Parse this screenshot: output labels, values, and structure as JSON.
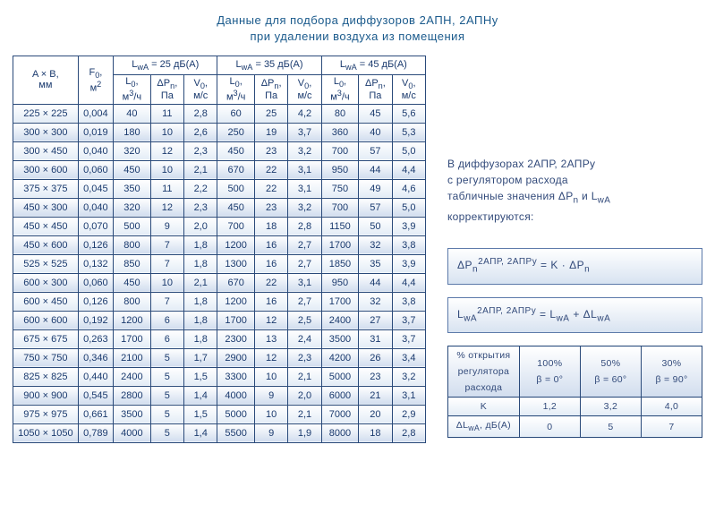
{
  "title_line1": "Данные для подбора диффузоров 2АПН, 2АПНу",
  "title_line2": "при удалении воздуха из помещения",
  "main_table": {
    "header": {
      "ab": "A × B,\nмм",
      "f0_html": "F<sub>0</sub>,<br>м<sup>2</sup>",
      "group25_html": "L<sub>wA</sub> = 25 дБ(A)",
      "group35_html": "L<sub>wA</sub> = 35 дБ(A)",
      "group45_html": "L<sub>wA</sub> = 45 дБ(A)",
      "l0_html": "L<sub>0</sub>,<br>м<sup>3</sup>/ч",
      "dp_html": "ΔP<sub>n</sub>,<br>Па",
      "v0_html": "V<sub>0</sub>,<br>м/с"
    },
    "rows": [
      {
        "ab": "225 × 225",
        "f0": "0,004",
        "g25": [
          "40",
          "11",
          "2,8"
        ],
        "g35": [
          "60",
          "25",
          "4,2"
        ],
        "g45": [
          "80",
          "45",
          "5,6"
        ]
      },
      {
        "ab": "300 × 300",
        "f0": "0,019",
        "g25": [
          "180",
          "10",
          "2,6"
        ],
        "g35": [
          "250",
          "19",
          "3,7"
        ],
        "g45": [
          "360",
          "40",
          "5,3"
        ]
      },
      {
        "ab": "300 × 450",
        "f0": "0,040",
        "g25": [
          "320",
          "12",
          "2,3"
        ],
        "g35": [
          "450",
          "23",
          "3,2"
        ],
        "g45": [
          "700",
          "57",
          "5,0"
        ]
      },
      {
        "ab": "300 × 600",
        "f0": "0,060",
        "g25": [
          "450",
          "10",
          "2,1"
        ],
        "g35": [
          "670",
          "22",
          "3,1"
        ],
        "g45": [
          "950",
          "44",
          "4,4"
        ]
      },
      {
        "ab": "375 × 375",
        "f0": "0,045",
        "g25": [
          "350",
          "11",
          "2,2"
        ],
        "g35": [
          "500",
          "22",
          "3,1"
        ],
        "g45": [
          "750",
          "49",
          "4,6"
        ]
      },
      {
        "ab": "450 × 300",
        "f0": "0,040",
        "g25": [
          "320",
          "12",
          "2,3"
        ],
        "g35": [
          "450",
          "23",
          "3,2"
        ],
        "g45": [
          "700",
          "57",
          "5,0"
        ]
      },
      {
        "ab": "450 × 450",
        "f0": "0,070",
        "g25": [
          "500",
          "9",
          "2,0"
        ],
        "g35": [
          "700",
          "18",
          "2,8"
        ],
        "g45": [
          "1150",
          "50",
          "3,9"
        ]
      },
      {
        "ab": "450 × 600",
        "f0": "0,126",
        "g25": [
          "800",
          "7",
          "1,8"
        ],
        "g35": [
          "1200",
          "16",
          "2,7"
        ],
        "g45": [
          "1700",
          "32",
          "3,8"
        ]
      },
      {
        "ab": "525 × 525",
        "f0": "0,132",
        "g25": [
          "850",
          "7",
          "1,8"
        ],
        "g35": [
          "1300",
          "16",
          "2,7"
        ],
        "g45": [
          "1850",
          "35",
          "3,9"
        ]
      },
      {
        "ab": "600 × 300",
        "f0": "0,060",
        "g25": [
          "450",
          "10",
          "2,1"
        ],
        "g35": [
          "670",
          "22",
          "3,1"
        ],
        "g45": [
          "950",
          "44",
          "4,4"
        ]
      },
      {
        "ab": "600 × 450",
        "f0": "0,126",
        "g25": [
          "800",
          "7",
          "1,8"
        ],
        "g35": [
          "1200",
          "16",
          "2,7"
        ],
        "g45": [
          "1700",
          "32",
          "3,8"
        ]
      },
      {
        "ab": "600 × 600",
        "f0": "0,192",
        "g25": [
          "1200",
          "6",
          "1,8"
        ],
        "g35": [
          "1700",
          "12",
          "2,5"
        ],
        "g45": [
          "2400",
          "27",
          "3,7"
        ]
      },
      {
        "ab": "675 × 675",
        "f0": "0,263",
        "g25": [
          "1700",
          "6",
          "1,8"
        ],
        "g35": [
          "2300",
          "13",
          "2,4"
        ],
        "g45": [
          "3500",
          "31",
          "3,7"
        ]
      },
      {
        "ab": "750 × 750",
        "f0": "0,346",
        "g25": [
          "2100",
          "5",
          "1,7"
        ],
        "g35": [
          "2900",
          "12",
          "2,3"
        ],
        "g45": [
          "4200",
          "26",
          "3,4"
        ]
      },
      {
        "ab": "825 × 825",
        "f0": "0,440",
        "g25": [
          "2400",
          "5",
          "1,5"
        ],
        "g35": [
          "3300",
          "10",
          "2,1"
        ],
        "g45": [
          "5000",
          "23",
          "3,2"
        ]
      },
      {
        "ab": "900 × 900",
        "f0": "0,545",
        "g25": [
          "2800",
          "5",
          "1,4"
        ],
        "g35": [
          "4000",
          "9",
          "2,0"
        ],
        "g45": [
          "6000",
          "21",
          "3,1"
        ]
      },
      {
        "ab": "975 × 975",
        "f0": "0,661",
        "g25": [
          "3500",
          "5",
          "1,5"
        ],
        "g35": [
          "5000",
          "10",
          "2,1"
        ],
        "g45": [
          "7000",
          "20",
          "2,9"
        ]
      },
      {
        "ab": "1050 × 1050",
        "f0": "0,789",
        "g25": [
          "4000",
          "5",
          "1,4"
        ],
        "g35": [
          "5500",
          "9",
          "1,9"
        ],
        "g45": [
          "8000",
          "18",
          "2,8"
        ]
      }
    ]
  },
  "note": {
    "line1": "В диффузорах 2АПР, 2АПРу",
    "line2": "с регулятором расхода",
    "line3_html": "табличные значения ΔP<sub>n</sub> и L<sub>wA</sub>",
    "line4": "корректируются:"
  },
  "formula1_html": "ΔP<sub>n</sub><sup>2АПР, 2АПРу</sup> = K · ΔP<sub>n</sub>",
  "formula2_html": "L<sub>wA</sub><sup>2АПР, 2АПРу</sup> = L<sub>wA</sub> + ΔL<sub>wA</sub>",
  "small_table": {
    "header": [
      "% открытия регулятора расхода",
      "100%\nβ = 0°",
      "50%\nβ = 60°",
      "30%\nβ = 90°"
    ],
    "rows": [
      {
        "label": "K",
        "vals": [
          "1,2",
          "3,2",
          "4,0"
        ]
      },
      {
        "label_html": "ΔL<sub>wA</sub>, дБ(A)",
        "vals": [
          "0",
          "5",
          "7"
        ]
      }
    ]
  },
  "style": {
    "colors": {
      "border": "#2a4a7a",
      "text": "#1a3a6e",
      "title": "#1a5a8c",
      "row_light_bottom": "#e3ecf6",
      "row_dark_bottom": "#d1ddee",
      "background": "#ffffff"
    },
    "font_family": "Verdana, Geneva, sans-serif"
  }
}
